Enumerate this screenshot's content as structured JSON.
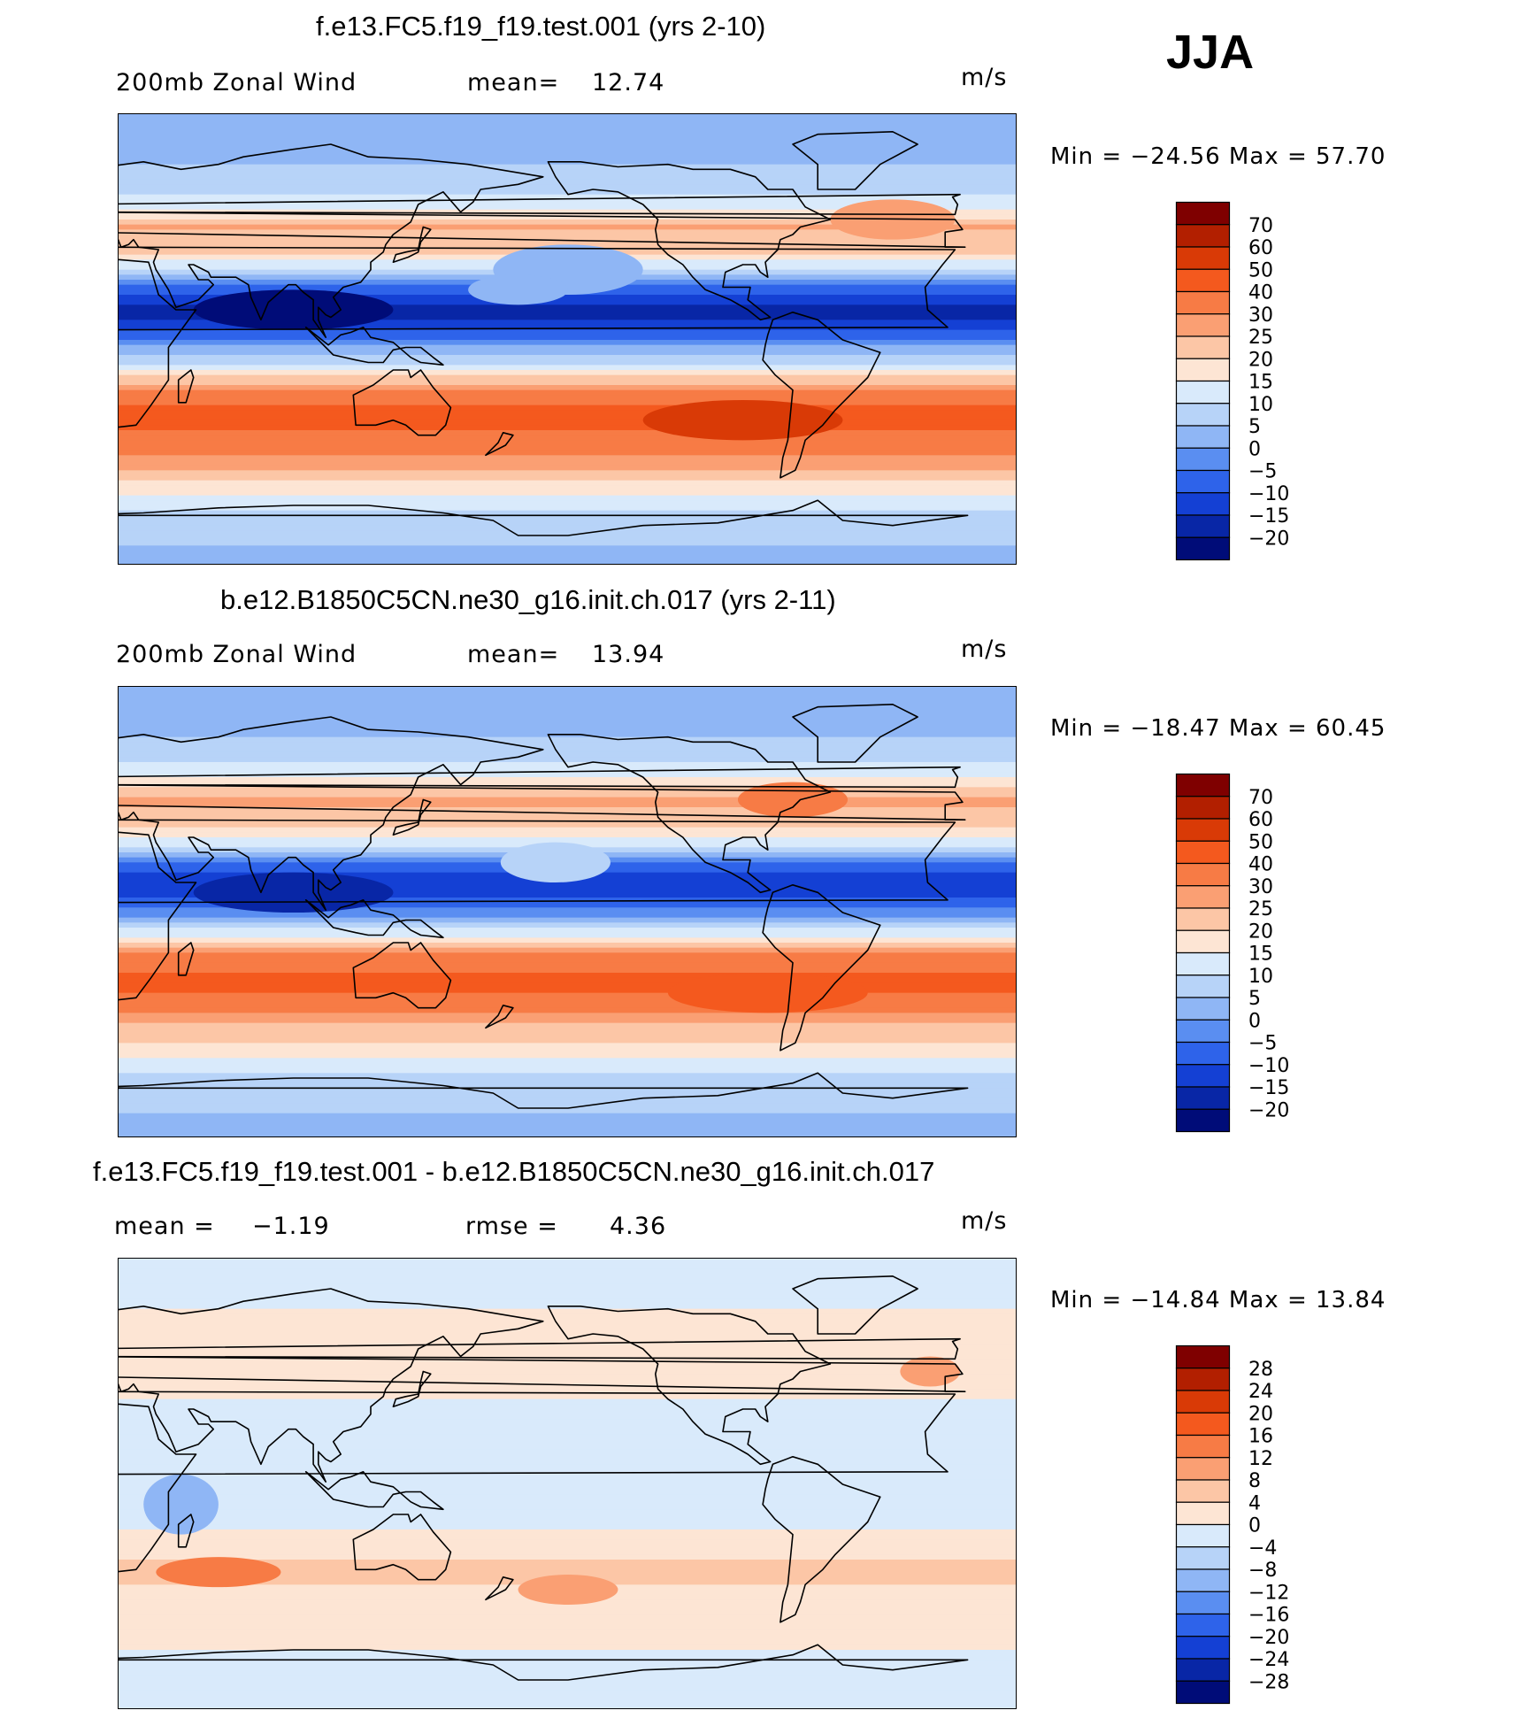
{
  "season": "JJA",
  "units": "m/s",
  "chart_data": [
    {
      "type": "heatmap",
      "title": "f.e13.FC5.f19_f19.test.001 (yrs 2-10)",
      "variable": "200mb Zonal Wind",
      "stat_label": "mean=",
      "stat_value": "12.74",
      "units": "m/s",
      "min_text": "Min  =  −24.56  Max  =    57.70",
      "min": -24.56,
      "max": 57.7,
      "colorbar_labels": [
        "70",
        "60",
        "50",
        "40",
        "30",
        "25",
        "20",
        "15",
        "10",
        "5",
        "0",
        "−5",
        "−10",
        "−15",
        "−20"
      ],
      "colorbar_colors": [
        "#7f0000",
        "#b21f00",
        "#d93a06",
        "#f4591e",
        "#f77b45",
        "#fa9f73",
        "#fcc6a6",
        "#fde5d4",
        "#d9eafb",
        "#b7d3f8",
        "#8fb6f5",
        "#5a8ef1",
        "#2e63ea",
        "#1440d4",
        "#0826a6",
        "#000c78"
      ],
      "profile": {
        "lat": [
          -90,
          -75,
          -64,
          -55,
          -45,
          -35,
          -28,
          -20,
          -12,
          -5,
          2,
          10,
          18,
          27,
          35,
          45,
          55,
          65,
          75,
          90
        ],
        "u": [
          3,
          7,
          12,
          22,
          30,
          42,
          45,
          30,
          14,
          4,
          -8,
          -18,
          -12,
          6,
          22,
          25,
          12,
          6,
          4,
          4
        ]
      },
      "anomalies": [
        {
          "lon": 270,
          "lat": -32,
          "rx": 40,
          "ry": 8,
          "dv": 8
        },
        {
          "lon": 90,
          "lat": 12,
          "rx": 40,
          "ry": 8,
          "dv": -6
        },
        {
          "lon": 200,
          "lat": 28,
          "rx": 30,
          "ry": 10,
          "dv": -8
        },
        {
          "lon": 330,
          "lat": 48,
          "rx": 25,
          "ry": 8,
          "dv": 8
        },
        {
          "lon": 180,
          "lat": 20,
          "rx": 20,
          "ry": 6,
          "dv": 12
        }
      ]
    },
    {
      "type": "heatmap",
      "title": "b.e12.B1850C5CN.ne30_g16.init.ch.017 (yrs 2-11)",
      "variable": "200mb Zonal Wind",
      "stat_label": "mean=",
      "stat_value": "13.94",
      "units": "m/s",
      "min_text": "Min  =  −18.47  Max  =    60.45",
      "min": -18.47,
      "max": 60.45,
      "colorbar_labels": [
        "70",
        "60",
        "50",
        "40",
        "30",
        "25",
        "20",
        "15",
        "10",
        "5",
        "0",
        "−5",
        "−10",
        "−15",
        "−20"
      ],
      "colorbar_colors": [
        "#7f0000",
        "#b21f00",
        "#d93a06",
        "#f4591e",
        "#f77b45",
        "#fa9f73",
        "#fcc6a6",
        "#fde5d4",
        "#d9eafb",
        "#b7d3f8",
        "#8fb6f5",
        "#5a8ef1",
        "#2e63ea",
        "#1440d4",
        "#0826a6",
        "#000c78"
      ],
      "profile": {
        "lat": [
          -90,
          -75,
          -64,
          -55,
          -45,
          -35,
          -28,
          -20,
          -12,
          -5,
          2,
          10,
          18,
          27,
          35,
          45,
          55,
          65,
          75,
          90
        ],
        "u": [
          3,
          6,
          10,
          18,
          24,
          38,
          44,
          36,
          20,
          6,
          -6,
          -16,
          -8,
          10,
          22,
          26,
          14,
          6,
          4,
          4
        ]
      },
      "anomalies": [
        {
          "lon": 280,
          "lat": -32,
          "rx": 40,
          "ry": 8,
          "dv": 6
        },
        {
          "lon": 90,
          "lat": 8,
          "rx": 40,
          "ry": 8,
          "dv": -6
        },
        {
          "lon": 195,
          "lat": 20,
          "rx": 22,
          "ry": 8,
          "dv": 10
        },
        {
          "lon": 290,
          "lat": 45,
          "rx": 22,
          "ry": 7,
          "dv": 8
        }
      ]
    },
    {
      "type": "heatmap",
      "title": "f.e13.FC5.f19_f19.test.001 - b.e12.B1850C5CN.ne30_g16.init.ch.017",
      "stat_label": "mean =",
      "stat_value": "−1.19",
      "rmse_label": "rmse =",
      "rmse_value": "4.36",
      "units": "m/s",
      "min_text": "Min  =  −14.84  Max  =    13.84",
      "min": -14.84,
      "max": 13.84,
      "colorbar_labels": [
        "28",
        "24",
        "20",
        "16",
        "12",
        "8",
        "4",
        "0",
        "−4",
        "−8",
        "−12",
        "−16",
        "−20",
        "−24",
        "−28"
      ],
      "colorbar_colors": [
        "#7f0000",
        "#b21f00",
        "#d93a06",
        "#f4591e",
        "#f77b45",
        "#fa9f73",
        "#fcc6a6",
        "#fde5d4",
        "#d9eafb",
        "#b7d3f8",
        "#8fb6f5",
        "#5a8ef1",
        "#2e63ea",
        "#1440d4",
        "#0826a6",
        "#000c78"
      ],
      "profile": {
        "lat": [
          -90,
          -75,
          -60,
          -45,
          -35,
          -25,
          -15,
          -5,
          5,
          15,
          25,
          35,
          45,
          55,
          70,
          90
        ],
        "u": [
          -1,
          -2,
          1,
          3,
          5,
          3,
          -1,
          -2,
          -2,
          -3,
          -2,
          0,
          2,
          1,
          0,
          -1
        ]
      },
      "anomalies": [
        {
          "lon": 45,
          "lat": -8,
          "rx": 15,
          "ry": 12,
          "dv": -10
        },
        {
          "lon": 60,
          "lat": -35,
          "rx": 25,
          "ry": 6,
          "dv": 8
        },
        {
          "lon": 0,
          "lat": 40,
          "rx": 12,
          "ry": 6,
          "dv": 8
        },
        {
          "lon": 345,
          "lat": 45,
          "rx": 12,
          "ry": 6,
          "dv": 8
        },
        {
          "lon": 200,
          "lat": -42,
          "rx": 20,
          "ry": 6,
          "dv": 5
        }
      ]
    }
  ]
}
